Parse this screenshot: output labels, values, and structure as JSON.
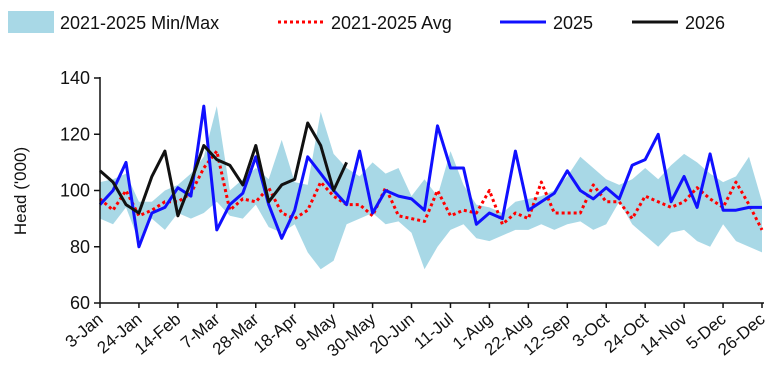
{
  "chart_data": {
    "type": "line",
    "ylabel": "Head ('000)",
    "xlabel": "",
    "ylim": [
      60,
      140
    ],
    "y_ticks": [
      "60",
      "80",
      "100",
      "120",
      "140"
    ],
    "x_tick_labels": [
      "3-Jan",
      "24-Jan",
      "14-Feb",
      "7-Mar",
      "28-Mar",
      "18-Apr",
      "9-May",
      "30-May",
      "20-Jun",
      "11-Jul",
      "1-Aug",
      "22-Aug",
      "12-Sep",
      "3-Oct",
      "24-Oct",
      "14-Nov",
      "5-Dec",
      "26-Dec"
    ],
    "legend_placement": "top",
    "grid": false,
    "weeks": 52,
    "series": [
      {
        "name": "2021-2025 Min/Max",
        "kind": "band",
        "color": "#a8d8e6",
        "min": [
          90,
          88,
          94,
          82,
          90,
          86,
          92,
          90,
          92,
          96,
          91,
          90,
          95,
          87,
          85,
          88,
          78,
          72,
          75,
          88,
          90,
          92,
          88,
          89,
          85,
          72,
          80,
          86,
          88,
          83,
          82,
          84,
          86,
          86,
          88,
          86,
          88,
          89,
          86,
          88,
          96,
          88,
          84,
          80,
          85,
          86,
          82,
          80,
          88,
          82,
          80,
          78
        ],
        "max": [
          103,
          104,
          106,
          96,
          96,
          100,
          102,
          106,
          112,
          130,
          100,
          104,
          108,
          104,
          118,
          103,
          102,
          128,
          113,
          108,
          105,
          110,
          106,
          108,
          98,
          104,
          98,
          114,
          102,
          95,
          94,
          92,
          96,
          97,
          98,
          100,
          105,
          112,
          108,
          104,
          102,
          104,
          108,
          104,
          109,
          113,
          110,
          106,
          103,
          105,
          112,
          96
        ]
      },
      {
        "name": "2021-2025 Avg",
        "kind": "line",
        "color": "#ff0000",
        "values": [
          97,
          93,
          100,
          91,
          93,
          96,
          96,
          99,
          108,
          114,
          93,
          97,
          96,
          101,
          92,
          90,
          93,
          103,
          98,
          95,
          95,
          91,
          101,
          91,
          90,
          89,
          100,
          91,
          93,
          92,
          100,
          88,
          92,
          90,
          103,
          92,
          92,
          92,
          102,
          96,
          96,
          90,
          98,
          96,
          94,
          96,
          101,
          97,
          94,
          103,
          95,
          86
        ]
      },
      {
        "name": "2025",
        "kind": "line",
        "color": "#1010ff",
        "values": [
          95,
          100,
          110,
          80,
          92,
          94,
          101,
          98,
          130,
          86,
          95,
          99,
          112,
          95,
          83,
          93,
          112,
          106,
          100,
          95,
          114,
          92,
          100,
          98,
          97,
          93,
          123,
          108,
          108,
          88,
          92,
          90,
          114,
          93,
          96,
          99,
          107,
          100,
          97,
          101,
          97,
          109,
          111,
          120,
          96,
          105,
          94,
          113,
          93,
          93,
          94,
          94
        ]
      },
      {
        "name": "2026",
        "kind": "line",
        "color": "#111111",
        "values": [
          107,
          103,
          95,
          92,
          105,
          114,
          91,
          103,
          116,
          111,
          109,
          102,
          116,
          96,
          102,
          104,
          124,
          116,
          100,
          110
        ]
      }
    ]
  }
}
